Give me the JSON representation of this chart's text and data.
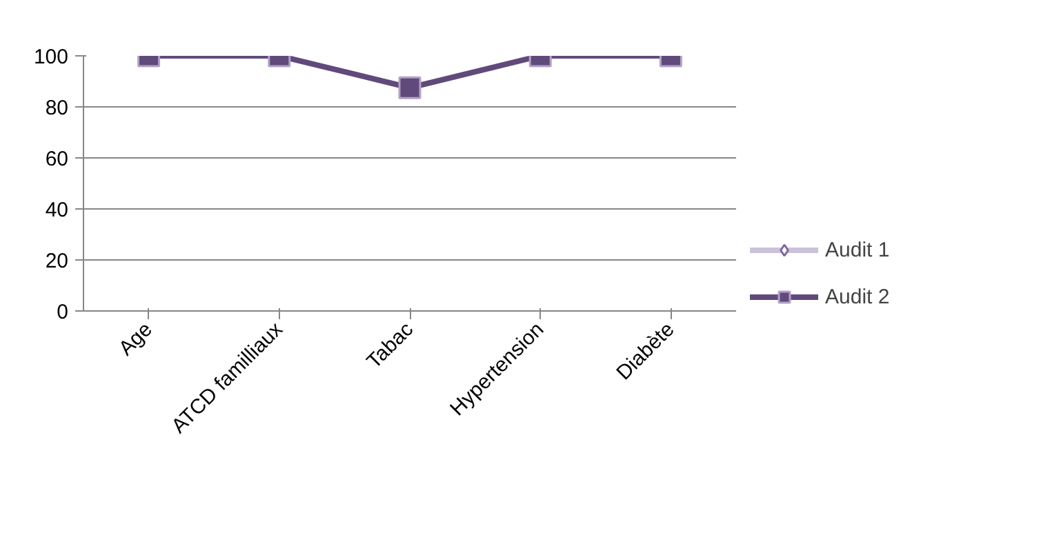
{
  "chart_data": {
    "type": "line",
    "categories": [
      "Age",
      "ATCD familliaux",
      "Tabac",
      "Hypertension",
      "Diabète"
    ],
    "series": [
      {
        "name": "Audit 1",
        "color": "#ccc1da",
        "marker": "diamond",
        "values": [
          null,
          null,
          null,
          null,
          null
        ]
      },
      {
        "name": "Audit 2",
        "color": "#604a7b",
        "marker": "square",
        "values": [
          100,
          100,
          87.5,
          100,
          100
        ]
      }
    ],
    "ylim": [
      0,
      100
    ],
    "yticks": [
      0,
      20,
      40,
      60,
      80,
      100
    ],
    "grid": "y",
    "legend": "right",
    "line_style": "solid"
  }
}
